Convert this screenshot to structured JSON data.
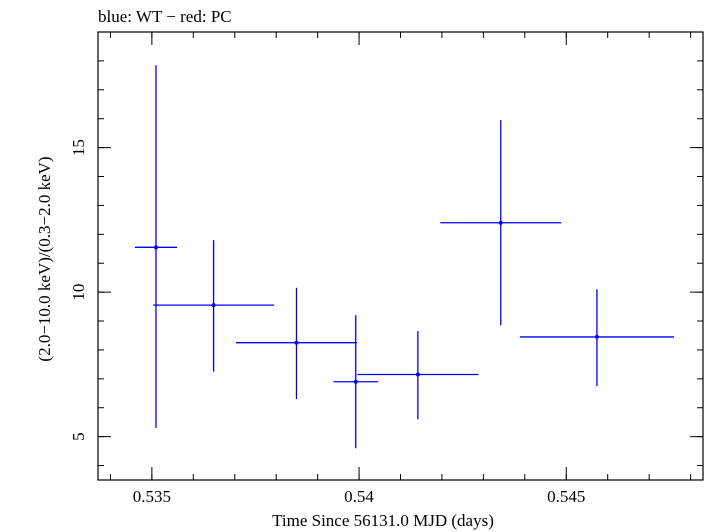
{
  "chart_data": {
    "type": "scatter",
    "title": "blue: WT − red: PC",
    "xlabel": "Time Since 56131.0 MJD (days)",
    "ylabel": "(2.0−10.0 keV)/(0.3−2.0 keV)",
    "xlim": [
      0.5337,
      0.5483
    ],
    "ylim": [
      3.5,
      19.0
    ],
    "x_ticks": [
      {
        "value": 0.535,
        "label": "0.535"
      },
      {
        "value": 0.54,
        "label": "0.54"
      },
      {
        "value": 0.545,
        "label": "0.545"
      }
    ],
    "y_ticks": [
      {
        "value": 5,
        "label": "5"
      },
      {
        "value": 10,
        "label": "10"
      },
      {
        "value": 15,
        "label": "15"
      }
    ],
    "x_minor_step": 0.001,
    "y_minor_step": 1,
    "grid": false,
    "series": [
      {
        "name": "WT",
        "color": "#0000ff",
        "points": [
          {
            "x": 0.5351,
            "y": 11.55,
            "xerr_lo": 0.00051,
            "xerr_hi": 0.00051,
            "yerr_lo": 6.25,
            "yerr_hi": 6.3
          },
          {
            "x": 0.53649,
            "y": 9.55,
            "xerr_lo": 0.00146,
            "xerr_hi": 0.00146,
            "yerr_lo": 2.3,
            "yerr_hi": 2.25
          },
          {
            "x": 0.53849,
            "y": 8.25,
            "xerr_lo": 0.00146,
            "xerr_hi": 0.00146,
            "yerr_lo": 1.95,
            "yerr_hi": 1.9
          },
          {
            "x": 0.53992,
            "y": 6.9,
            "xerr_lo": 0.00054,
            "xerr_hi": 0.00054,
            "yerr_lo": 2.3,
            "yerr_hi": 2.3
          },
          {
            "x": 0.54142,
            "y": 7.15,
            "xerr_lo": 0.00146,
            "xerr_hi": 0.00146,
            "yerr_lo": 1.55,
            "yerr_hi": 1.5
          },
          {
            "x": 0.54342,
            "y": 12.4,
            "xerr_lo": 0.00146,
            "xerr_hi": 0.00146,
            "yerr_lo": 3.55,
            "yerr_hi": 3.55
          },
          {
            "x": 0.54574,
            "y": 8.45,
            "xerr_lo": 0.00186,
            "xerr_hi": 0.00186,
            "yerr_lo": 1.7,
            "yerr_hi": 1.65
          }
        ]
      }
    ]
  }
}
